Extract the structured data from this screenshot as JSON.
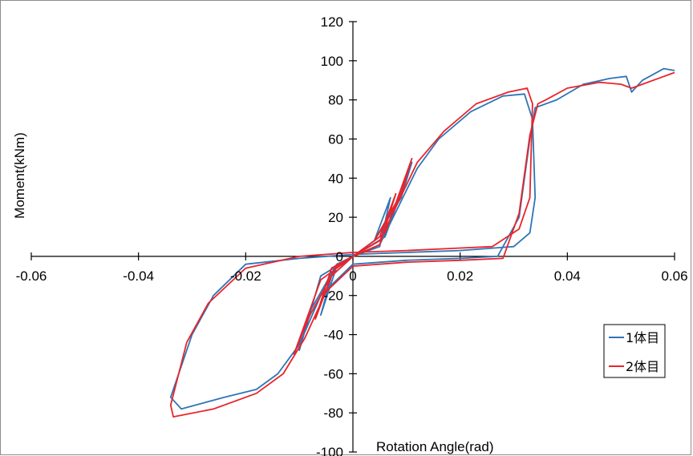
{
  "chart_data": {
    "type": "line",
    "title": "",
    "xlabel": "Rotation Angle(rad)",
    "ylabel": "Moment(kNm)",
    "xlim": [
      -0.06,
      0.06
    ],
    "ylim": [
      -100,
      120
    ],
    "x_ticks": [
      -0.06,
      -0.04,
      -0.02,
      0,
      0.02,
      0.04,
      0.06
    ],
    "x_tick_labels": [
      "-0.06",
      "-0.04",
      "-0.02",
      "0",
      "0.02",
      "0.04",
      "0.06"
    ],
    "y_ticks": [
      120,
      100,
      80,
      60,
      40,
      20,
      0,
      -20,
      -40,
      -60,
      -80,
      -100
    ],
    "y_tick_labels": [
      "120",
      "100",
      "80",
      "60",
      "40",
      "20",
      "0",
      "-20",
      "-40",
      "-60",
      "-80",
      "-100"
    ],
    "grid": false,
    "legend_position": "right",
    "series": [
      {
        "name": "1体目",
        "color": "#2e75b6",
        "points": [
          [
            0,
            0
          ],
          [
            0.005,
            5
          ],
          [
            0.007,
            30
          ],
          [
            0.004,
            8
          ],
          [
            0,
            0
          ],
          [
            -0.003,
            -5
          ],
          [
            -0.006,
            -30
          ],
          [
            -0.004,
            -10
          ],
          [
            0,
            0
          ],
          [
            0.006,
            10
          ],
          [
            0.011,
            48
          ],
          [
            0.009,
            30
          ],
          [
            0.004,
            8
          ],
          [
            0,
            0
          ],
          [
            -0.006,
            -10
          ],
          [
            -0.01,
            -48
          ],
          [
            -0.008,
            -28
          ],
          [
            -0.003,
            -4
          ],
          [
            0,
            0
          ],
          [
            0.005,
            6
          ],
          [
            0.012,
            45
          ],
          [
            0.016,
            60
          ],
          [
            0.022,
            74
          ],
          [
            0.028,
            82
          ],
          [
            0.032,
            83
          ],
          [
            0.0335,
            70
          ],
          [
            0.034,
            30
          ],
          [
            0.033,
            12
          ],
          [
            0.03,
            5
          ],
          [
            0.02,
            3
          ],
          [
            0.01,
            2
          ],
          [
            0,
            1
          ],
          [
            -0.01,
            -1
          ],
          [
            -0.02,
            -4
          ],
          [
            -0.026,
            -20
          ],
          [
            -0.03,
            -40
          ],
          [
            -0.034,
            -72
          ],
          [
            -0.032,
            -78
          ],
          [
            -0.024,
            -72
          ],
          [
            -0.018,
            -68
          ],
          [
            -0.014,
            -60
          ],
          [
            -0.01,
            -45
          ],
          [
            -0.006,
            -20
          ],
          [
            0,
            -4
          ],
          [
            0.01,
            -2
          ],
          [
            0.02,
            -1
          ],
          [
            0.027,
            0
          ],
          [
            0.031,
            20
          ],
          [
            0.033,
            60
          ],
          [
            0.034,
            76
          ],
          [
            0.038,
            80
          ],
          [
            0.043,
            88
          ],
          [
            0.048,
            91
          ],
          [
            0.051,
            92
          ],
          [
            0.052,
            84
          ],
          [
            0.054,
            90
          ],
          [
            0.056,
            93
          ],
          [
            0.058,
            96
          ],
          [
            0.06,
            95
          ]
        ]
      },
      {
        "name": "2体目",
        "color": "#e8242c",
        "points": [
          [
            0,
            0
          ],
          [
            0.005,
            6
          ],
          [
            0.008,
            32
          ],
          [
            0.005,
            10
          ],
          [
            0,
            0
          ],
          [
            -0.004,
            -6
          ],
          [
            -0.007,
            -32
          ],
          [
            -0.004,
            -10
          ],
          [
            0,
            0
          ],
          [
            0.006,
            12
          ],
          [
            0.011,
            50
          ],
          [
            0.009,
            32
          ],
          [
            0.004,
            8
          ],
          [
            0,
            0
          ],
          [
            -0.006,
            -12
          ],
          [
            -0.011,
            -50
          ],
          [
            -0.008,
            -30
          ],
          [
            -0.003,
            -5
          ],
          [
            0,
            0
          ],
          [
            0.005,
            8
          ],
          [
            0.012,
            48
          ],
          [
            0.017,
            64
          ],
          [
            0.023,
            78
          ],
          [
            0.029,
            84
          ],
          [
            0.0325,
            86
          ],
          [
            0.0335,
            78
          ],
          [
            0.033,
            30
          ],
          [
            0.031,
            14
          ],
          [
            0.026,
            5
          ],
          [
            0.018,
            4
          ],
          [
            0.01,
            3
          ],
          [
            0,
            2
          ],
          [
            -0.01,
            0
          ],
          [
            -0.02,
            -6
          ],
          [
            -0.027,
            -24
          ],
          [
            -0.031,
            -44
          ],
          [
            -0.034,
            -76
          ],
          [
            -0.0335,
            -82
          ],
          [
            -0.026,
            -78
          ],
          [
            -0.018,
            -70
          ],
          [
            -0.013,
            -60
          ],
          [
            -0.009,
            -42
          ],
          [
            -0.005,
            -18
          ],
          [
            0,
            -5
          ],
          [
            0.01,
            -3
          ],
          [
            0.02,
            -2
          ],
          [
            0.028,
            -1
          ],
          [
            0.031,
            22
          ],
          [
            0.033,
            62
          ],
          [
            0.0345,
            78
          ],
          [
            0.036,
            80
          ],
          [
            0.04,
            86
          ],
          [
            0.046,
            89
          ],
          [
            0.05,
            88
          ],
          [
            0.052,
            86
          ],
          [
            0.054,
            88
          ],
          [
            0.057,
            91
          ],
          [
            0.06,
            94
          ]
        ]
      }
    ]
  }
}
